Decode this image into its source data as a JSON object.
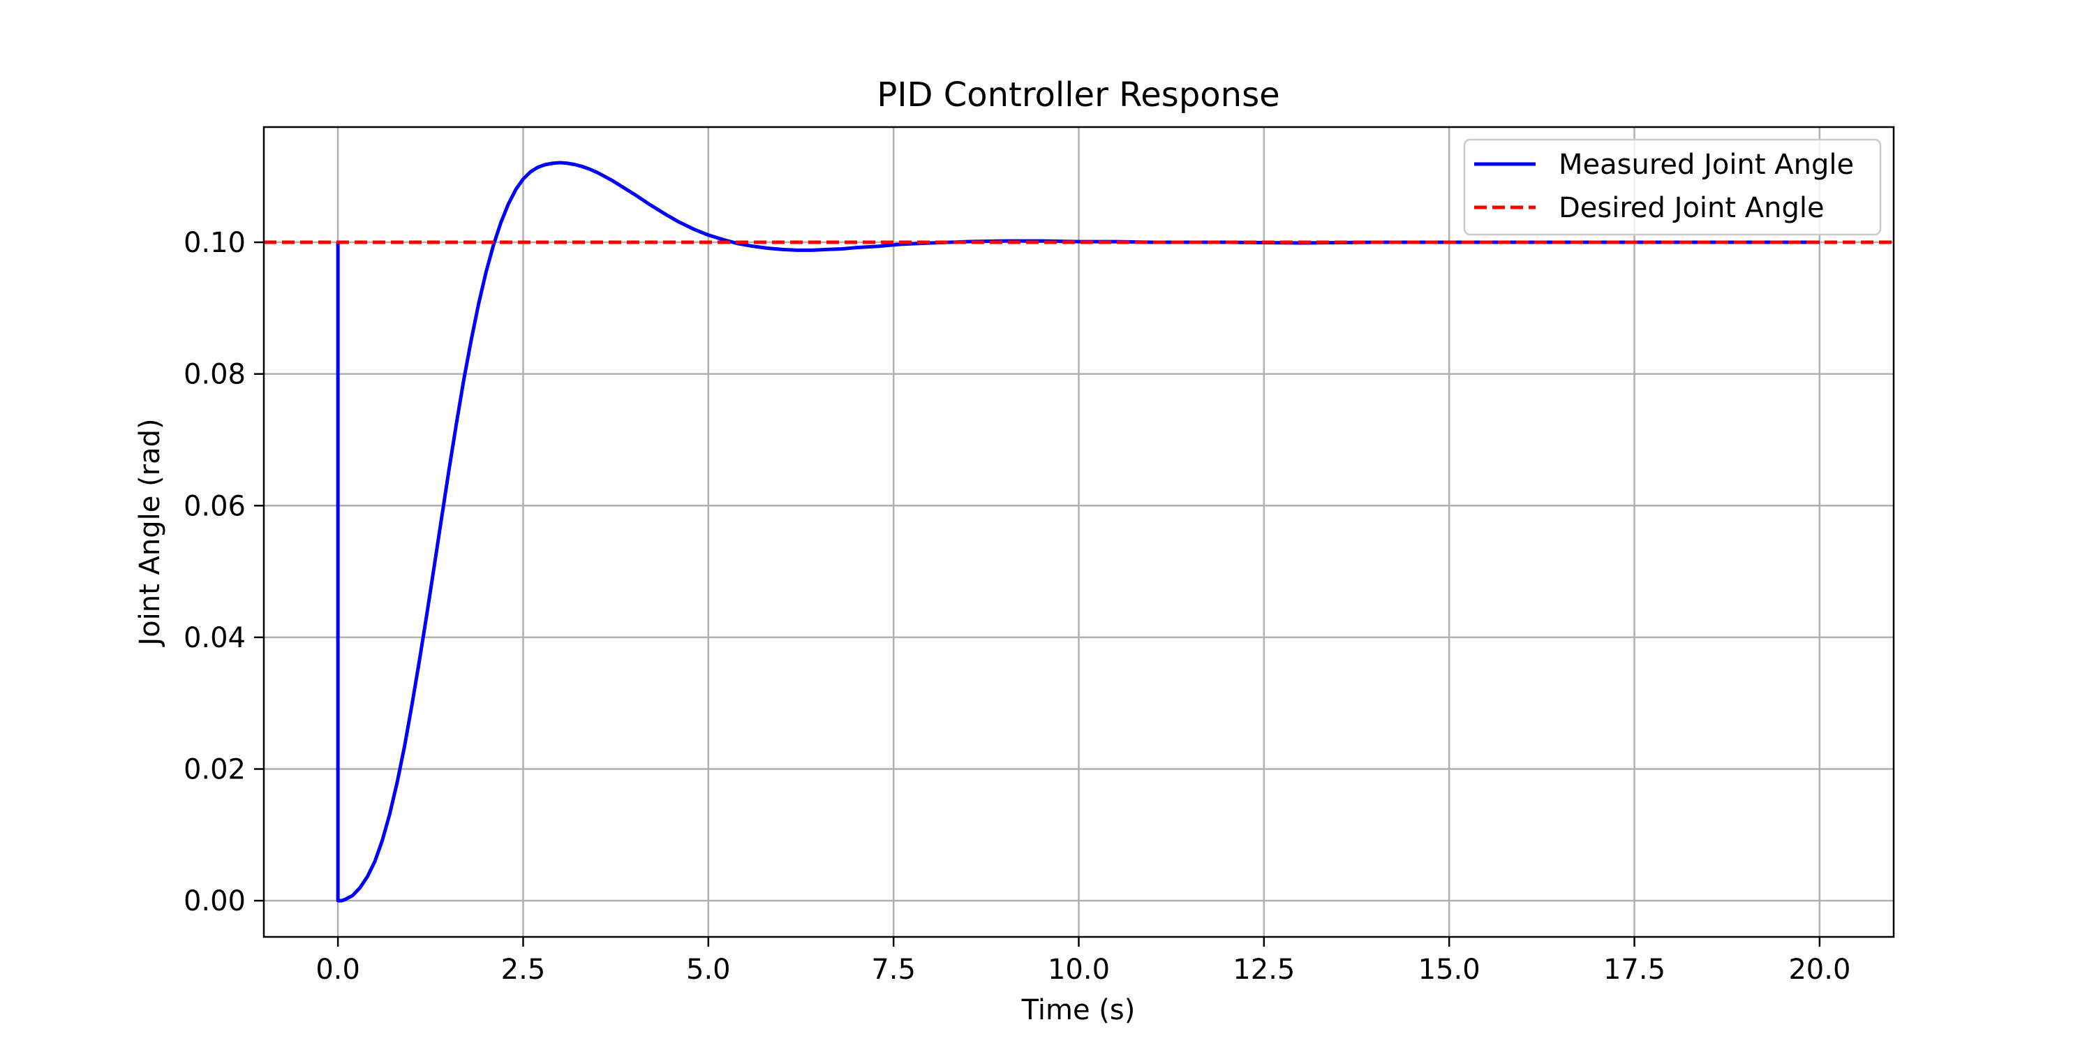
{
  "chart_data": {
    "type": "line",
    "title": "PID Controller Response",
    "xlabel": "Time (s)",
    "ylabel": "Joint Angle (rad)",
    "xlim": [
      -1.0,
      21.0
    ],
    "ylim": [
      -0.0055,
      0.1175
    ],
    "grid": true,
    "legend_position": "top-right",
    "x_ticks": [
      0.0,
      2.5,
      5.0,
      7.5,
      10.0,
      12.5,
      15.0,
      17.5,
      20.0
    ],
    "x_tick_labels": [
      "0.0",
      "2.5",
      "5.0",
      "7.5",
      "10.0",
      "12.5",
      "15.0",
      "17.5",
      "20.0"
    ],
    "y_ticks": [
      0.0,
      0.02,
      0.04,
      0.06,
      0.08,
      0.1
    ],
    "y_tick_labels": [
      "0.00",
      "0.02",
      "0.04",
      "0.06",
      "0.08",
      "0.10"
    ],
    "series": [
      {
        "name": "Measured Joint Angle",
        "color": "#0000ff",
        "style": "solid",
        "x": [
          0.0,
          0.0,
          0.05,
          0.1,
          0.2,
          0.3,
          0.4,
          0.5,
          0.6,
          0.7,
          0.8,
          0.9,
          1.0,
          1.1,
          1.2,
          1.3,
          1.4,
          1.5,
          1.6,
          1.7,
          1.8,
          1.9,
          2.0,
          2.1,
          2.2,
          2.3,
          2.4,
          2.5,
          2.6,
          2.7,
          2.8,
          2.9,
          3.0,
          3.1,
          3.2,
          3.3,
          3.4,
          3.5,
          3.6,
          3.7,
          3.8,
          3.9,
          4.0,
          4.2,
          4.4,
          4.6,
          4.8,
          5.0,
          5.2,
          5.4,
          5.6,
          5.8,
          6.0,
          6.2,
          6.4,
          6.6,
          6.8,
          7.0,
          7.3,
          7.6,
          8.0,
          8.5,
          9.0,
          9.5,
          10.0,
          10.5,
          11.0,
          12.0,
          13.0,
          14.0,
          15.0,
          16.0,
          17.0,
          18.0,
          19.0,
          20.0
        ],
        "values": [
          0.1,
          0.0,
          0.0,
          0.0002,
          0.0008,
          0.002,
          0.0037,
          0.006,
          0.0092,
          0.0132,
          0.018,
          0.0235,
          0.0298,
          0.0365,
          0.0435,
          0.0508,
          0.0582,
          0.0655,
          0.0725,
          0.0792,
          0.0852,
          0.0907,
          0.0955,
          0.0996,
          0.103,
          0.1058,
          0.108,
          0.1096,
          0.1107,
          0.1114,
          0.1118,
          0.112,
          0.1121,
          0.112,
          0.1118,
          0.1115,
          0.1111,
          0.1106,
          0.11,
          0.1094,
          0.1087,
          0.108,
          0.1073,
          0.1058,
          0.1044,
          0.1031,
          0.102,
          0.1011,
          0.1004,
          0.0998,
          0.0994,
          0.0991,
          0.0989,
          0.0988,
          0.0988,
          0.0989,
          0.099,
          0.0992,
          0.0994,
          0.0997,
          0.0999,
          0.1001,
          0.1002,
          0.1002,
          0.1001,
          0.1001,
          0.1,
          0.1,
          0.0999,
          0.1,
          0.1,
          0.1,
          0.1,
          0.1,
          0.1,
          0.1
        ]
      },
      {
        "name": "Desired Joint Angle",
        "color": "#ff0000",
        "style": "dashed",
        "x": [
          -1.0,
          21.0
        ],
        "values": [
          0.1,
          0.1
        ]
      }
    ]
  }
}
